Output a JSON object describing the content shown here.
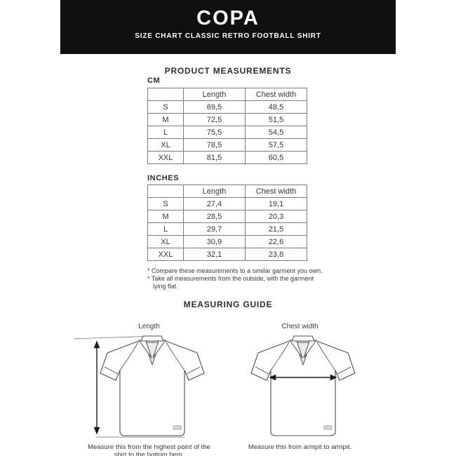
{
  "header": {
    "logo": "COPA",
    "subtitle": "SIZE CHART CLASSIC RETRO FOOTBALL SHIRT",
    "bg_color": "#0f0f0f",
    "text_color": "#ffffff"
  },
  "measurements": {
    "title": "PRODUCT MEASUREMENTS",
    "col_length": "Length",
    "col_chest": "Chest width",
    "cm": {
      "label": "CM",
      "rows": [
        [
          "S",
          "69,5",
          "48,5"
        ],
        [
          "M",
          "72,5",
          "51,5"
        ],
        [
          "L",
          "75,5",
          "54,5"
        ],
        [
          "XL",
          "78,5",
          "57,5"
        ],
        [
          "XXL",
          "81,5",
          "60,5"
        ]
      ]
    },
    "inches": {
      "label": "INCHES",
      "rows": [
        [
          "S",
          "27,4",
          "19,1"
        ],
        [
          "M",
          "28,5",
          "20,3"
        ],
        [
          "L",
          "29,7",
          "21,5"
        ],
        [
          "XL",
          "30,9",
          "22,6"
        ],
        [
          "XXL",
          "32,1",
          "23,8"
        ]
      ]
    },
    "footnote1": "* Compare these measurements to a similar garment you own.",
    "footnote2": "* Take all measurements from the outside, with the garment\nlying flat."
  },
  "guide": {
    "title": "MEASURING GUIDE",
    "length_figure": {
      "label": "Length",
      "caption": "Measure this from the highest point of the shirt to the bottom hem."
    },
    "chest_figure": {
      "label": "Chest width",
      "caption": "Measure this from armpit to armpit."
    }
  },
  "colors": {
    "line": "#4d4d4d",
    "arrow": "#1c1c1c",
    "guide_line": "#8a8a8a",
    "table_border": "#7b7b7b"
  }
}
